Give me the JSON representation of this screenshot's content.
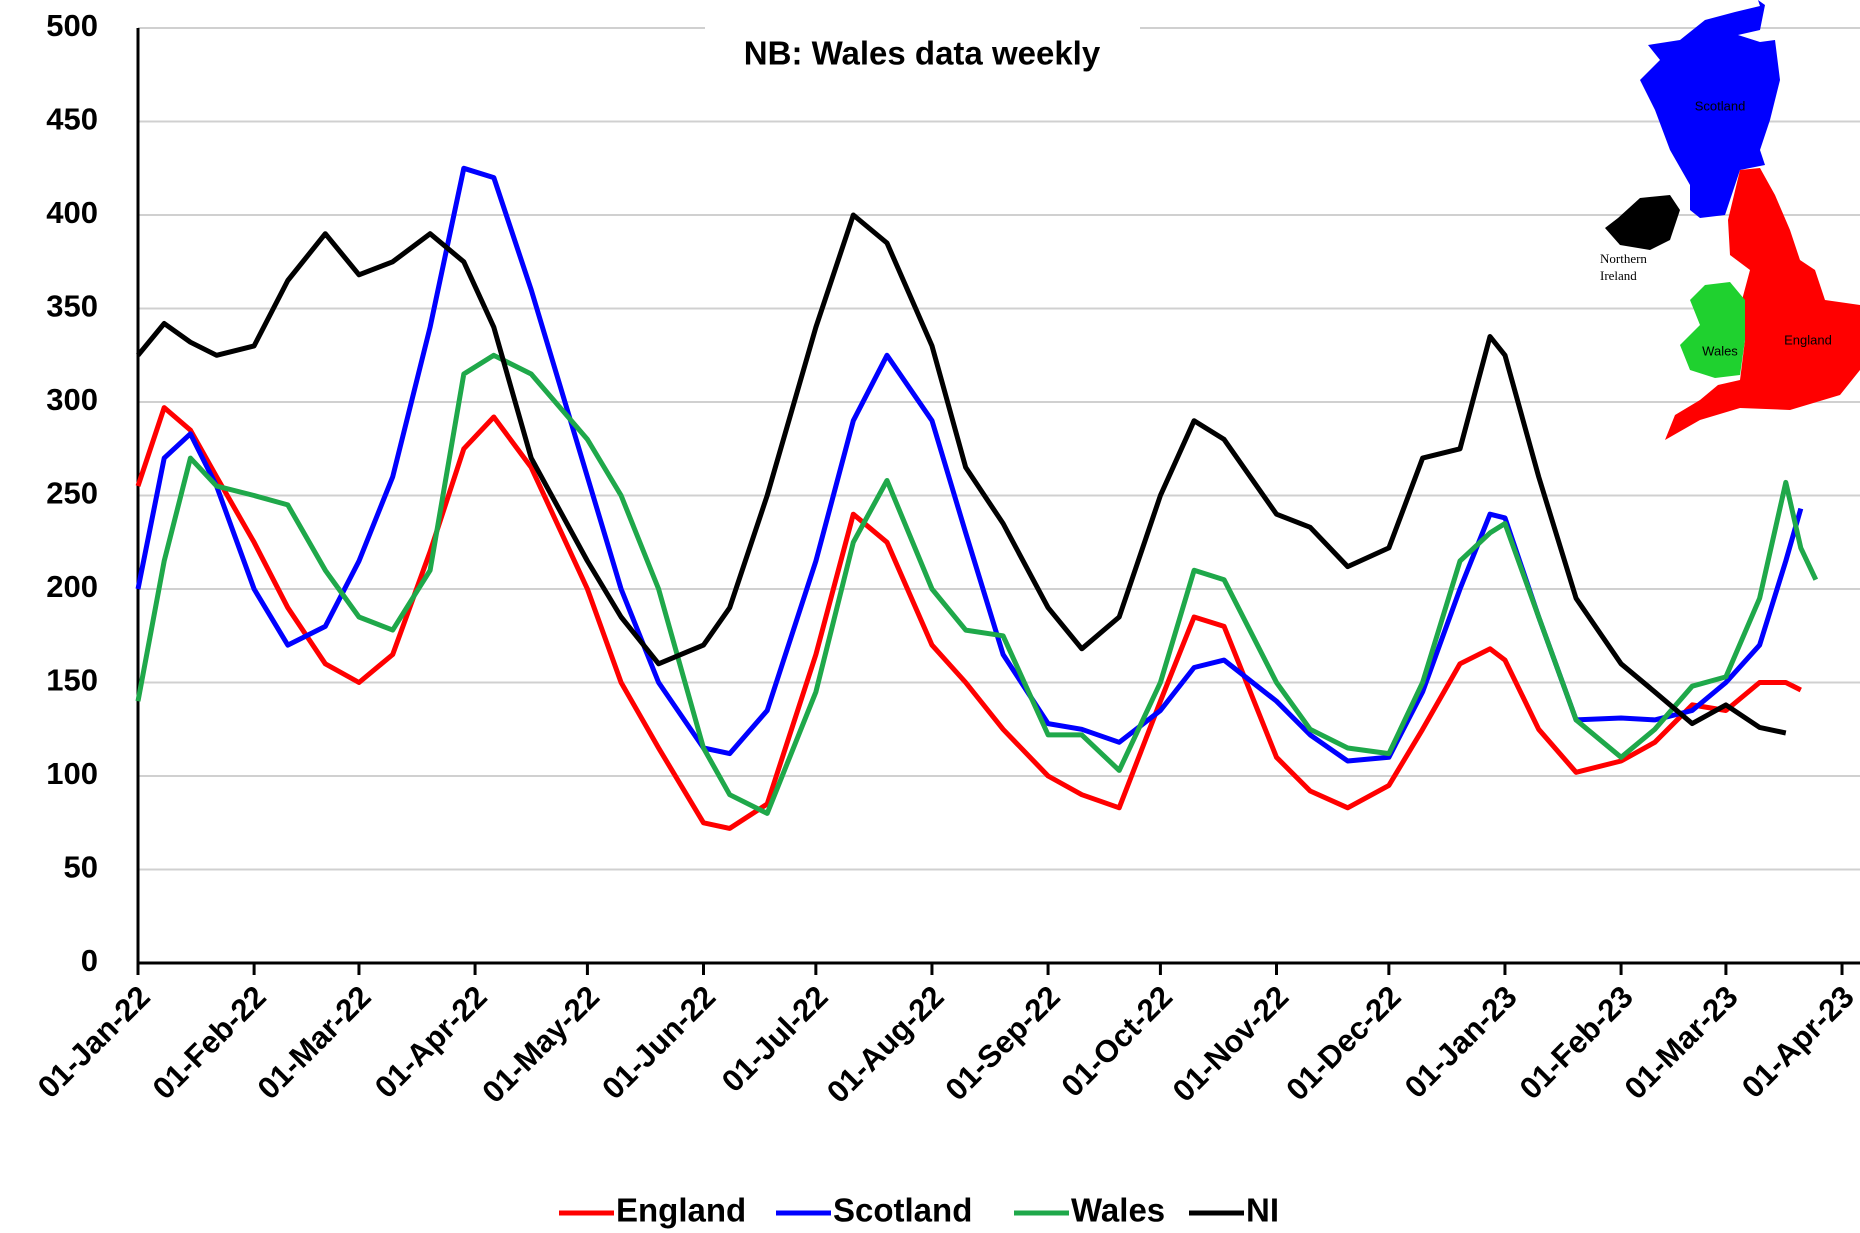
{
  "chart_data": {
    "type": "line",
    "annotation": "NB: Wales data weekly",
    "map_labels": [
      "Scotland",
      "Northern Ireland",
      "Wales",
      "England"
    ],
    "x": [
      "2022-01-01",
      "2022-01-08",
      "2022-01-15",
      "2022-01-22",
      "2022-02-01",
      "2022-02-10",
      "2022-02-20",
      "2022-03-01",
      "2022-03-10",
      "2022-03-20",
      "2022-03-29",
      "2022-04-06",
      "2022-04-16",
      "2022-05-01",
      "2022-05-10",
      "2022-05-20",
      "2022-06-01",
      "2022-06-08",
      "2022-06-18",
      "2022-07-01",
      "2022-07-11",
      "2022-07-20",
      "2022-08-01",
      "2022-08-10",
      "2022-08-20",
      "2022-09-01",
      "2022-09-10",
      "2022-09-20",
      "2022-10-01",
      "2022-10-10",
      "2022-10-18",
      "2022-11-01",
      "2022-11-10",
      "2022-11-20",
      "2022-12-01",
      "2022-12-10",
      "2022-12-20",
      "2022-12-28",
      "2023-01-01",
      "2023-01-10",
      "2023-01-20",
      "2023-02-01",
      "2023-02-10",
      "2023-02-20",
      "2023-03-01",
      "2023-03-10",
      "2023-03-17",
      "2023-03-21",
      "2023-03-25"
    ],
    "series": [
      {
        "name": "England",
        "color": "#ff0000",
        "values": [
          255,
          297,
          285,
          260,
          225,
          190,
          160,
          150,
          165,
          220,
          275,
          292,
          265,
          200,
          150,
          115,
          75,
          72,
          85,
          165,
          240,
          225,
          170,
          150,
          125,
          100,
          90,
          83,
          140,
          185,
          180,
          110,
          92,
          83,
          95,
          125,
          160,
          168,
          162,
          125,
          102,
          108,
          118,
          138,
          135,
          150,
          150,
          146,
          null
        ]
      },
      {
        "name": "Scotland",
        "color": "#0000ff",
        "values": [
          200,
          270,
          283,
          255,
          200,
          170,
          180,
          215,
          260,
          340,
          425,
          420,
          360,
          260,
          200,
          150,
          115,
          112,
          135,
          215,
          290,
          325,
          290,
          230,
          165,
          128,
          125,
          118,
          135,
          158,
          162,
          140,
          122,
          108,
          110,
          145,
          200,
          240,
          238,
          185,
          130,
          131,
          130,
          135,
          150,
          170,
          215,
          243,
          null
        ]
      },
      {
        "name": "Wales",
        "color": "#1fa84a",
        "values": [
          140,
          215,
          270,
          255,
          250,
          245,
          210,
          185,
          178,
          210,
          315,
          325,
          315,
          280,
          250,
          200,
          115,
          90,
          80,
          145,
          225,
          258,
          200,
          178,
          175,
          122,
          122,
          103,
          150,
          210,
          205,
          150,
          125,
          115,
          112,
          150,
          215,
          230,
          235,
          185,
          130,
          110,
          125,
          148,
          153,
          195,
          257,
          222,
          205
        ]
      },
      {
        "name": "NI",
        "color": "#000000",
        "values": [
          325,
          342,
          332,
          325,
          330,
          365,
          390,
          368,
          375,
          390,
          375,
          340,
          270,
          215,
          185,
          160,
          170,
          190,
          250,
          340,
          400,
          385,
          330,
          265,
          235,
          190,
          168,
          185,
          250,
          290,
          280,
          240,
          233,
          212,
          222,
          270,
          275,
          335,
          325,
          260,
          195,
          160,
          145,
          128,
          138,
          126,
          123,
          null,
          null
        ]
      }
    ],
    "xlim": [
      "2022-01-01",
      "2023-04-05"
    ],
    "xticks": [
      {
        "value": "2022-01-01",
        "label": "01-Jan-22"
      },
      {
        "value": "2022-02-01",
        "label": "01-Feb-22"
      },
      {
        "value": "2022-03-01",
        "label": "01-Mar-22"
      },
      {
        "value": "2022-04-01",
        "label": "01-Apr-22"
      },
      {
        "value": "2022-05-01",
        "label": "01-May-22"
      },
      {
        "value": "2022-06-01",
        "label": "01-Jun-22"
      },
      {
        "value": "2022-07-01",
        "label": "01-Jul-22"
      },
      {
        "value": "2022-08-01",
        "label": "01-Aug-22"
      },
      {
        "value": "2022-09-01",
        "label": "01-Sep-22"
      },
      {
        "value": "2022-10-01",
        "label": "01-Oct-22"
      },
      {
        "value": "2022-11-01",
        "label": "01-Nov-22"
      },
      {
        "value": "2022-12-01",
        "label": "01-Dec-22"
      },
      {
        "value": "2023-01-01",
        "label": "01-Jan-23"
      },
      {
        "value": "2023-02-01",
        "label": "01-Feb-23"
      },
      {
        "value": "2023-03-01",
        "label": "01-Mar-23"
      },
      {
        "value": "2023-04-01",
        "label": "01-Apr-23"
      }
    ],
    "ylim": [
      0,
      500
    ],
    "yticks": [
      0,
      50,
      100,
      150,
      200,
      250,
      300,
      350,
      400,
      450,
      500
    ],
    "grid": true,
    "legend": "bottom"
  }
}
